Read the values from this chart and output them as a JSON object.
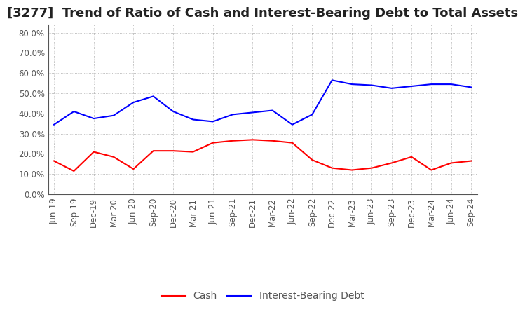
{
  "title": "[3277]  Trend of Ratio of Cash and Interest-Bearing Debt to Total Assets",
  "x_labels": [
    "Jun-19",
    "Sep-19",
    "Dec-19",
    "Mar-20",
    "Jun-20",
    "Sep-20",
    "Dec-20",
    "Mar-21",
    "Jun-21",
    "Sep-21",
    "Dec-21",
    "Mar-22",
    "Jun-22",
    "Sep-22",
    "Dec-22",
    "Mar-23",
    "Jun-23",
    "Sep-23",
    "Dec-23",
    "Mar-24",
    "Jun-24",
    "Sep-24"
  ],
  "cash": [
    0.165,
    0.115,
    0.21,
    0.185,
    0.125,
    0.215,
    0.215,
    0.21,
    0.255,
    0.265,
    0.27,
    0.265,
    0.255,
    0.17,
    0.13,
    0.12,
    0.13,
    0.155,
    0.185,
    0.12,
    0.155,
    0.165
  ],
  "interest_bearing_debt": [
    0.345,
    0.41,
    0.375,
    0.39,
    0.455,
    0.485,
    0.41,
    0.37,
    0.36,
    0.395,
    0.405,
    0.415,
    0.345,
    0.395,
    0.565,
    0.545,
    0.54,
    0.525,
    0.535,
    0.545,
    0.545,
    0.53
  ],
  "cash_color": "#FF0000",
  "debt_color": "#0000FF",
  "ylim": [
    0.0,
    0.84
  ],
  "yticks": [
    0.0,
    0.1,
    0.2,
    0.3,
    0.4,
    0.5,
    0.6,
    0.7,
    0.8
  ],
  "background_color": "#FFFFFF",
  "grid_color": "#999999",
  "legend_cash": "Cash",
  "legend_debt": "Interest-Bearing Debt",
  "title_fontsize": 13,
  "axis_fontsize": 8.5,
  "legend_fontsize": 10
}
